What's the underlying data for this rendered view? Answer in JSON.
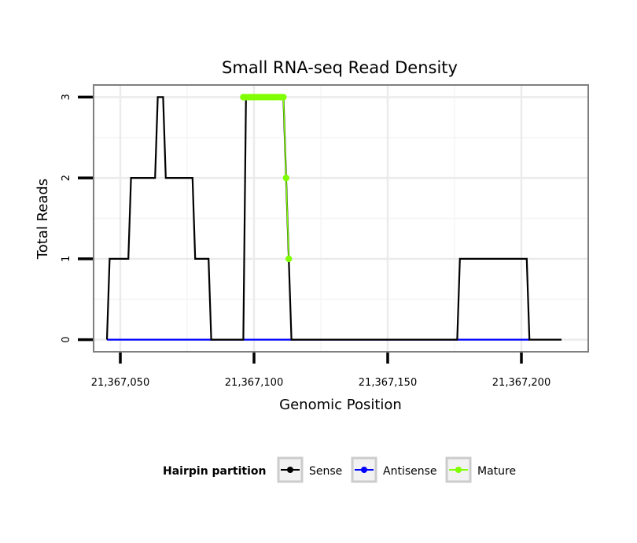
{
  "chart_data": {
    "type": "line",
    "title": "Small RNA-seq Read Density",
    "xlabel": "Genomic Position",
    "ylabel": "Total Reads",
    "xlim": [
      21367040,
      21367225
    ],
    "ylim": [
      -0.15,
      3.15
    ],
    "grid": true,
    "x_ticks": [
      {
        "value": 21367050,
        "label": "21,367,050"
      },
      {
        "value": 21367100,
        "label": "21,367,100"
      },
      {
        "value": 21367150,
        "label": "21,367,150"
      },
      {
        "value": 21367200,
        "label": "21,367,200"
      }
    ],
    "y_ticks": [
      {
        "value": 0,
        "label": "0"
      },
      {
        "value": 1,
        "label": "1"
      },
      {
        "value": 2,
        "label": "2"
      },
      {
        "value": 3,
        "label": "3"
      }
    ],
    "legend": {
      "title": "Hairpin partition",
      "position": "bottom",
      "entries": [
        {
          "name": "Sense",
          "color": "#000000"
        },
        {
          "name": "Antisense",
          "color": "#0000ff"
        },
        {
          "name": "Mature",
          "color": "#7fff00"
        }
      ]
    },
    "series": [
      {
        "name": "Sense",
        "color": "#000000",
        "markers": false,
        "x": [
          21367045,
          21367046,
          21367050,
          21367051,
          21367053,
          21367054,
          21367063,
          21367064,
          21367066,
          21367067,
          21367077,
          21367078,
          21367083,
          21367084,
          21367096,
          21367097,
          21367111,
          21367114,
          21367176,
          21367177,
          21367202,
          21367203,
          21367215
        ],
        "y": [
          0,
          1,
          1,
          1,
          1,
          2,
          2,
          3,
          3,
          2,
          2,
          1,
          1,
          0,
          0,
          3,
          3,
          0,
          0,
          1,
          1,
          0,
          0
        ]
      },
      {
        "name": "Antisense",
        "color": "#0000ff",
        "markers": false,
        "x": [
          21367045,
          21367203
        ],
        "y": [
          0,
          0
        ]
      },
      {
        "name": "Mature",
        "color": "#7fff00",
        "markers": true,
        "x": [
          21367096,
          21367097,
          21367098,
          21367099,
          21367100,
          21367101,
          21367102,
          21367103,
          21367104,
          21367105,
          21367106,
          21367107,
          21367108,
          21367109,
          21367110,
          21367111,
          21367112,
          21367113
        ],
        "y": [
          3,
          3,
          3,
          3,
          3,
          3,
          3,
          3,
          3,
          3,
          3,
          3,
          3,
          3,
          3,
          3,
          2,
          1
        ]
      }
    ]
  }
}
